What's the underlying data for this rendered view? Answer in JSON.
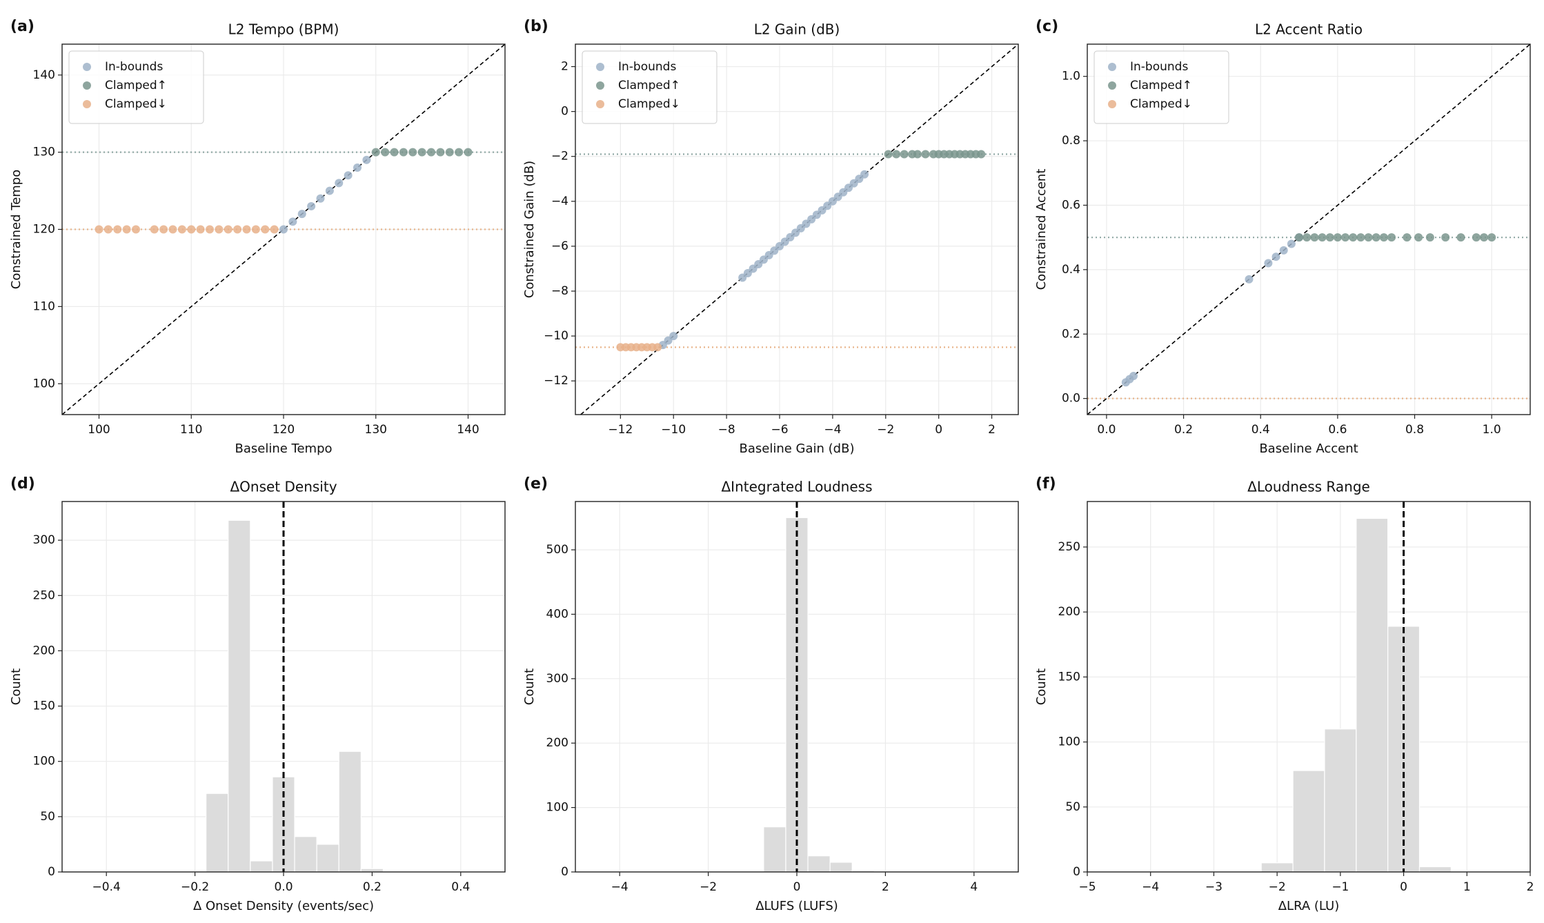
{
  "chart_data": [
    {
      "type": "scatter",
      "panel_label": "(a)",
      "title": "L2 Tempo (BPM)",
      "xlabel": "Baseline Tempo",
      "ylabel": "Constrained Tempo",
      "xlim": [
        96,
        144
      ],
      "ylim": [
        96,
        144
      ],
      "xticks": [
        100,
        110,
        120,
        130,
        140
      ],
      "yticks": [
        100,
        110,
        120,
        130,
        140
      ],
      "grid": true,
      "legend": "upper left",
      "diagonal": true,
      "hlines": [
        {
          "value": 130,
          "color": "#8fa8a4"
        },
        {
          "value": 120,
          "color": "#e8b48a"
        }
      ],
      "series": [
        {
          "name": "In-bounds",
          "color": "#9fb3c8",
          "x": [
            120,
            121,
            122,
            123,
            124,
            125,
            126,
            127,
            128,
            129
          ],
          "y": [
            120,
            121,
            122,
            123,
            124,
            125,
            126,
            127,
            128,
            129
          ]
        },
        {
          "name": "Clamped↑",
          "color": "#7a958d",
          "x": [
            130,
            131,
            132,
            133,
            134,
            135,
            136,
            137,
            138,
            139,
            140
          ],
          "y": [
            130,
            130,
            130,
            130,
            130,
            130,
            130,
            130,
            130,
            130,
            130
          ]
        },
        {
          "name": "Clamped↓",
          "color": "#e8b08a",
          "x": [
            100,
            101,
            102,
            103,
            104,
            106,
            107,
            108,
            109,
            110,
            111,
            112,
            113,
            114,
            115,
            116,
            117,
            118,
            119
          ],
          "y": [
            120,
            120,
            120,
            120,
            120,
            120,
            120,
            120,
            120,
            120,
            120,
            120,
            120,
            120,
            120,
            120,
            120,
            120,
            120
          ]
        }
      ]
    },
    {
      "type": "scatter",
      "panel_label": "(b)",
      "title": "L2 Gain (dB)",
      "xlabel": "Baseline Gain (dB)",
      "ylabel": "Constrained Gain (dB)",
      "xlim": [
        -13.7,
        3
      ],
      "ylim": [
        -13.5,
        3
      ],
      "xticks": [
        {
          "value": -12,
          "label": "−12"
        },
        {
          "value": -10,
          "label": "−10"
        },
        {
          "value": -8,
          "label": "−8"
        },
        {
          "value": -6,
          "label": "−6"
        },
        {
          "value": -4,
          "label": "−4"
        },
        {
          "value": -2,
          "label": "−2"
        },
        0,
        2
      ],
      "yticks": [
        {
          "value": -12,
          "label": "−12"
        },
        {
          "value": -10,
          "label": "−10"
        },
        {
          "value": -8,
          "label": "−8"
        },
        {
          "value": -6,
          "label": "−6"
        },
        {
          "value": -4,
          "label": "−4"
        },
        {
          "value": -2,
          "label": "−2"
        },
        0,
        2
      ],
      "grid": true,
      "legend": "upper left",
      "diagonal": true,
      "hlines": [
        {
          "value": -1.9,
          "color": "#8fa8a4"
        },
        {
          "value": -10.5,
          "color": "#e8b48a"
        }
      ],
      "series": [
        {
          "name": "In-bounds",
          "color": "#9fb3c8",
          "x": [
            -10.4,
            -10.2,
            -10.0,
            -7.4,
            -7.2,
            -7.0,
            -6.8,
            -6.6,
            -6.4,
            -6.2,
            -6.0,
            -5.8,
            -5.6,
            -5.4,
            -5.2,
            -5.0,
            -4.8,
            -4.6,
            -4.4,
            -4.2,
            -4.0,
            -3.8,
            -3.6,
            -3.4,
            -3.2,
            -3.0,
            -2.8
          ],
          "y": [
            -10.4,
            -10.2,
            -10.0,
            -7.4,
            -7.2,
            -7.0,
            -6.8,
            -6.6,
            -6.4,
            -6.2,
            -6.0,
            -5.8,
            -5.6,
            -5.4,
            -5.2,
            -5.0,
            -4.8,
            -4.6,
            -4.4,
            -4.2,
            -4.0,
            -3.8,
            -3.6,
            -3.4,
            -3.2,
            -3.0,
            -2.8
          ]
        },
        {
          "name": "Clamped↑",
          "color": "#7a958d",
          "x": [
            -1.9,
            -1.6,
            -1.3,
            -1.0,
            -0.8,
            -0.5,
            -0.2,
            0,
            0.2,
            0.4,
            0.6,
            0.8,
            1.0,
            1.2,
            1.4,
            1.6
          ],
          "y": [
            -1.9,
            -1.9,
            -1.9,
            -1.9,
            -1.9,
            -1.9,
            -1.9,
            -1.9,
            -1.9,
            -1.9,
            -1.9,
            -1.9,
            -1.9,
            -1.9,
            -1.9,
            -1.9
          ]
        },
        {
          "name": "Clamped↓",
          "color": "#e8b08a",
          "x": [
            -12.0,
            -11.8,
            -11.6,
            -11.4,
            -11.2,
            -11.0,
            -10.8,
            -10.6
          ],
          "y": [
            -10.5,
            -10.5,
            -10.5,
            -10.5,
            -10.5,
            -10.5,
            -10.5,
            -10.5
          ]
        }
      ]
    },
    {
      "type": "scatter",
      "panel_label": "(c)",
      "title": "L2 Accent Ratio",
      "xlabel": "Baseline Accent",
      "ylabel": "Constrained Accent",
      "xlim": [
        -0.05,
        1.1
      ],
      "ylim": [
        -0.05,
        1.1
      ],
      "xticks": [
        {
          "value": 0,
          "label": "0.0"
        },
        0.2,
        0.4,
        0.6,
        0.8,
        {
          "value": 1,
          "label": "1.0"
        }
      ],
      "yticks": [
        {
          "value": 0,
          "label": "0.0"
        },
        0.2,
        0.4,
        0.6,
        0.8,
        {
          "value": 1,
          "label": "1.0"
        }
      ],
      "grid": true,
      "legend": "upper left",
      "diagonal": true,
      "hlines": [
        {
          "value": 0.5,
          "color": "#8fa8a4"
        },
        {
          "value": 0,
          "color": "#e8b48a"
        }
      ],
      "series": [
        {
          "name": "In-bounds",
          "color": "#9fb3c8",
          "x": [
            0.05,
            0.06,
            0.07,
            0.37,
            0.42,
            0.44,
            0.46,
            0.48,
            0.5
          ],
          "y": [
            0.05,
            0.06,
            0.07,
            0.37,
            0.42,
            0.44,
            0.46,
            0.48,
            0.5
          ]
        },
        {
          "name": "Clamped↑",
          "color": "#7a958d",
          "x": [
            0.5,
            0.52,
            0.54,
            0.56,
            0.58,
            0.6,
            0.62,
            0.64,
            0.66,
            0.68,
            0.7,
            0.72,
            0.74,
            0.78,
            0.81,
            0.84,
            0.88,
            0.92,
            0.96,
            0.98,
            1.0
          ],
          "y": [
            0.5,
            0.5,
            0.5,
            0.5,
            0.5,
            0.5,
            0.5,
            0.5,
            0.5,
            0.5,
            0.5,
            0.5,
            0.5,
            0.5,
            0.5,
            0.5,
            0.5,
            0.5,
            0.5,
            0.5,
            0.5
          ]
        },
        {
          "name": "Clamped↓",
          "color": "#e8b08a",
          "x": [],
          "y": []
        }
      ]
    },
    {
      "type": "histogram",
      "panel_label": "(d)",
      "title": "ΔOnset Density",
      "xlabel": "Δ Onset Density (events/sec)",
      "ylabel": "Count",
      "xlim": [
        -0.5,
        0.5
      ],
      "ylim": [
        0,
        335
      ],
      "xticks": [
        {
          "value": -0.4,
          "label": "−0.4"
        },
        {
          "value": -0.2,
          "label": "−0.2"
        },
        {
          "value": 0,
          "label": "0.0"
        },
        0.2,
        0.4
      ],
      "yticks": [
        0,
        50,
        100,
        150,
        200,
        250,
        300
      ],
      "grid": true,
      "color": "#dcdcdc",
      "vline": 0,
      "bins": [
        -0.175,
        -0.125,
        -0.075,
        -0.025,
        0.025,
        0.075,
        0.125,
        0.175,
        0.225
      ],
      "counts": [
        71,
        318,
        10,
        86,
        32,
        25,
        109,
        3
      ]
    },
    {
      "type": "histogram",
      "panel_label": "(e)",
      "title": "ΔIntegrated Loudness",
      "xlabel": "ΔLUFS (LUFS)",
      "ylabel": "Count",
      "xlim": [
        -5,
        5
      ],
      "ylim": [
        0,
        575
      ],
      "xticks": [
        {
          "value": -4,
          "label": "−4"
        },
        {
          "value": -2,
          "label": "−2"
        },
        0,
        2,
        4
      ],
      "yticks": [
        0,
        100,
        200,
        300,
        400,
        500
      ],
      "grid": true,
      "color": "#dcdcdc",
      "vline": 0,
      "bins": [
        -0.75,
        -0.25,
        0.25,
        0.75,
        1.25,
        1.75
      ],
      "counts": [
        70,
        550,
        25,
        15,
        2
      ]
    },
    {
      "type": "histogram",
      "panel_label": "(f)",
      "title": "ΔLoudness Range",
      "xlabel": "ΔLRA (LU)",
      "ylabel": "Count",
      "xlim": [
        -5,
        2
      ],
      "ylim": [
        0,
        285
      ],
      "xticks": [
        {
          "value": -5,
          "label": "−5"
        },
        {
          "value": -4,
          "label": "−4"
        },
        {
          "value": -3,
          "label": "−3"
        },
        {
          "value": -2,
          "label": "−2"
        },
        {
          "value": -1,
          "label": "−1"
        },
        0,
        1,
        2
      ],
      "yticks": [
        0,
        50,
        100,
        150,
        200,
        250
      ],
      "grid": true,
      "color": "#dcdcdc",
      "vline": 0,
      "bins": [
        -2.25,
        -1.75,
        -1.25,
        -0.75,
        -0.25,
        0.25,
        0.75
      ],
      "counts": [
        7,
        78,
        110,
        272,
        189,
        4
      ]
    }
  ]
}
